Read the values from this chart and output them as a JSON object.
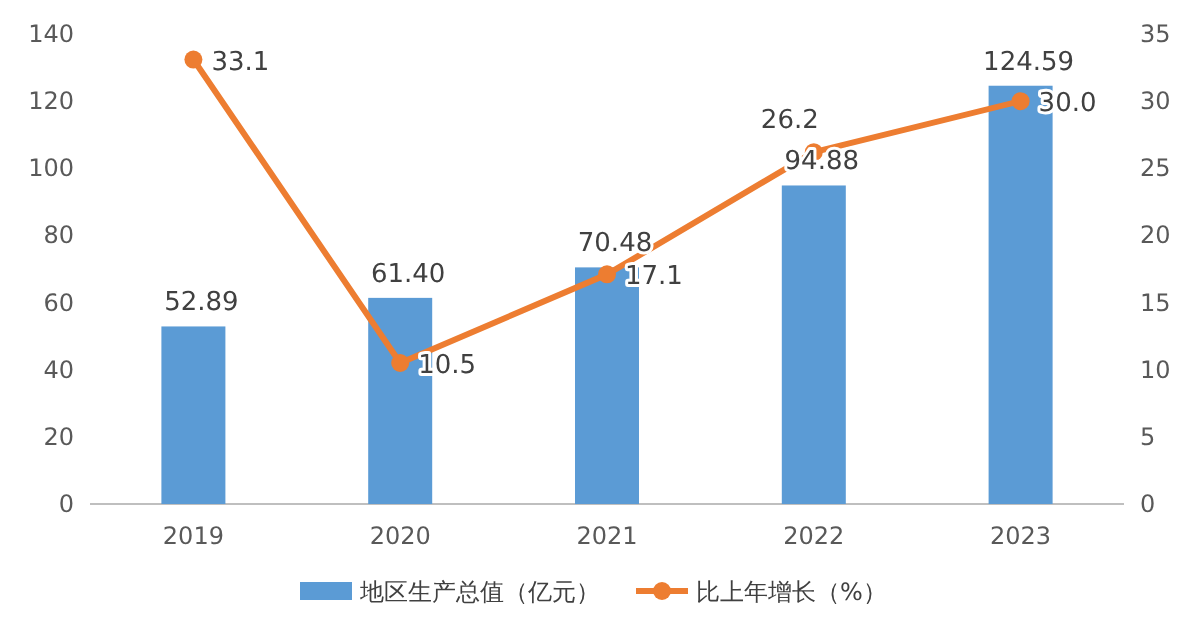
{
  "chart_data": {
    "type": "bar",
    "categories": [
      "2019",
      "2020",
      "2021",
      "2022",
      "2023"
    ],
    "series": [
      {
        "name": "地区生产总值（亿元）",
        "color": "#5b9bd5",
        "values": [
          52.89,
          61.4,
          70.48,
          94.88,
          124.59
        ],
        "value_labels": [
          "52.89",
          "61.40",
          "70.48",
          "94.88",
          "124.59"
        ]
      },
      {
        "name": "比上年增长（%）",
        "type": "line",
        "axis": "y2",
        "color": "#ed7d31",
        "marker": "circle",
        "values": [
          33.1,
          10.5,
          17.1,
          26.2,
          30.0
        ],
        "value_labels": [
          "33.1",
          "10.5",
          "17.1",
          "26.2",
          "30.0"
        ]
      }
    ],
    "ylim": [
      0,
      140
    ],
    "yticks": [
      0,
      20,
      40,
      60,
      80,
      100,
      120,
      140
    ],
    "y2lim": [
      0,
      35
    ],
    "y2ticks": [
      0,
      5,
      10,
      15,
      20,
      25,
      30,
      35
    ],
    "grid": false,
    "legend": "bottom"
  }
}
